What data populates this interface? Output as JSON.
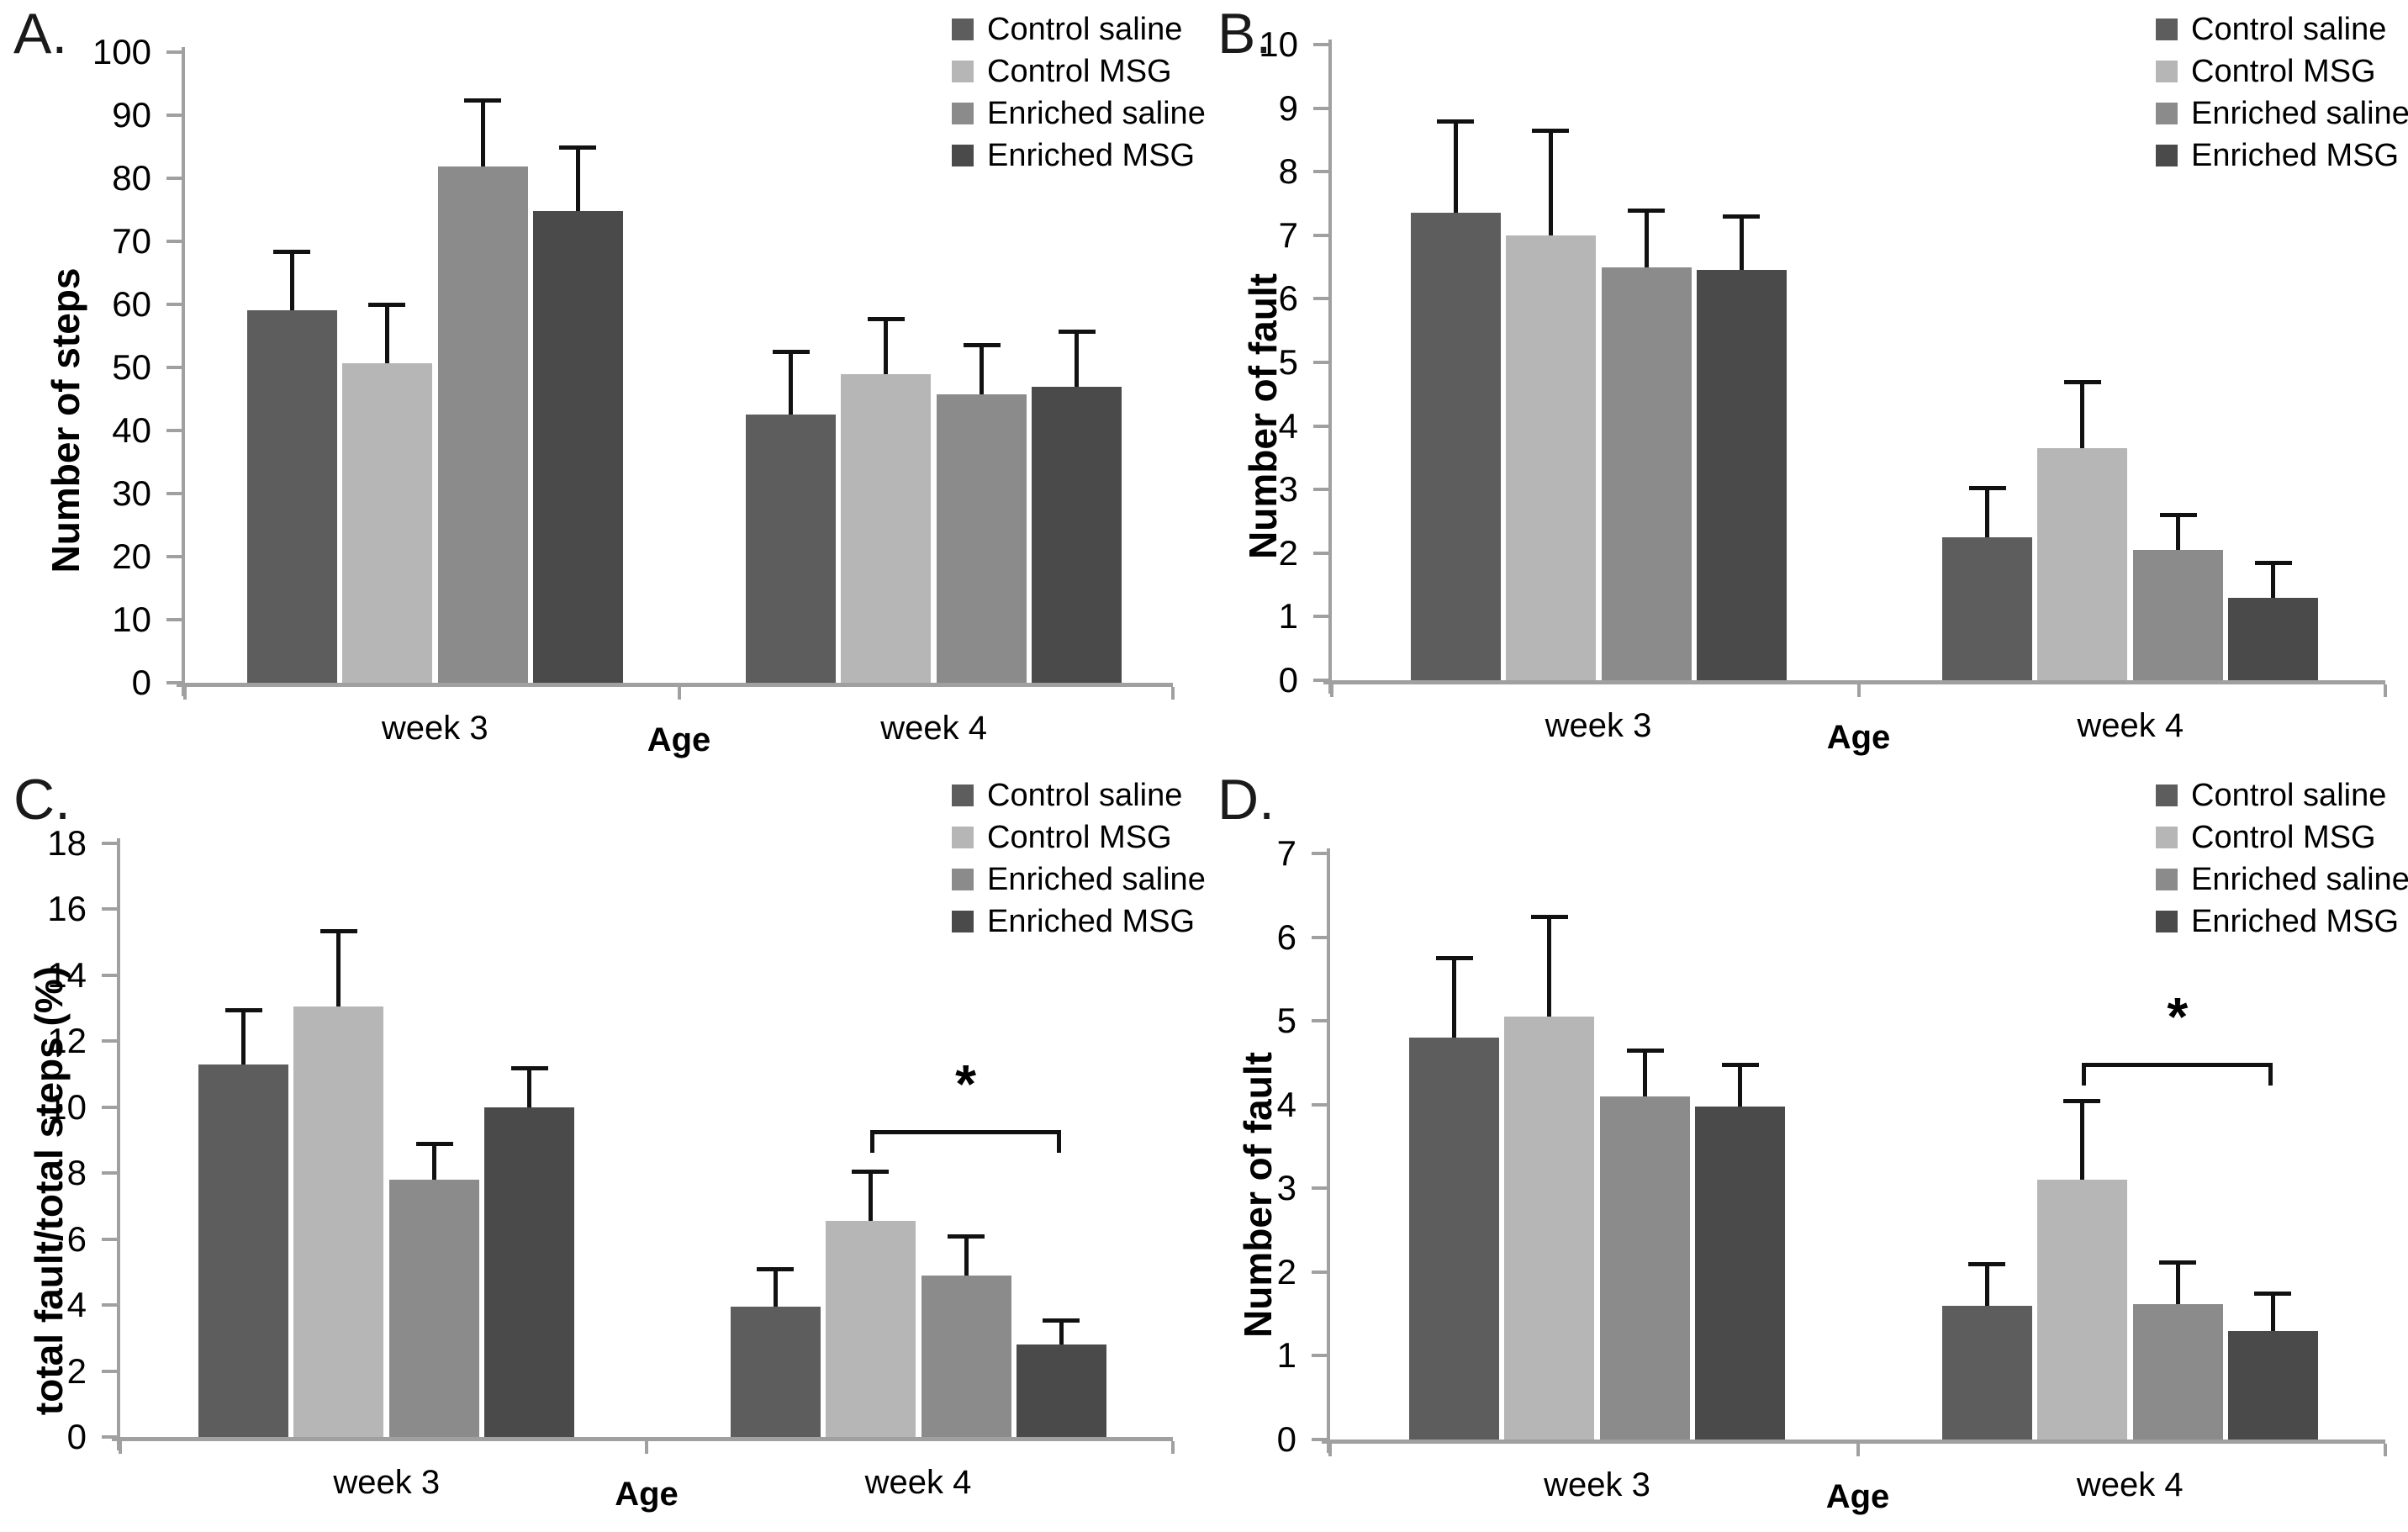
{
  "figure_title": "",
  "legend": {
    "position": "top-right",
    "items": [
      {
        "label": "Control saline",
        "color": "#5d5d5d"
      },
      {
        "label": "Control MSG",
        "color": "#b6b6b6"
      },
      {
        "label": "Enriched saline",
        "color": "#8b8b8b"
      },
      {
        "label": "Enriched MSG",
        "color": "#4a4a4a"
      }
    ]
  },
  "chart_data": [
    {
      "id": "A",
      "panel_label": "A.",
      "type": "bar",
      "title": "",
      "ylabel": "Number of steps",
      "xlabel": "Age",
      "categories": [
        "week 3",
        "week 4"
      ],
      "ylim": [
        0,
        100
      ],
      "ytick_step": 10,
      "grid": false,
      "legend_position": "top-right",
      "error_bars": "upper",
      "series": [
        {
          "name": "Control saline",
          "color": "#5d5d5d",
          "values": [
            59.1,
            42.5
          ],
          "errors_plus": [
            9.3,
            10.0
          ]
        },
        {
          "name": "Control MSG",
          "color": "#b6b6b6",
          "values": [
            50.7,
            48.9
          ],
          "errors_plus": [
            9.3,
            8.8
          ]
        },
        {
          "name": "Enriched saline",
          "color": "#8b8b8b",
          "values": [
            81.9,
            45.8
          ],
          "errors_plus": [
            10.5,
            7.8
          ]
        },
        {
          "name": "Enriched MSG",
          "color": "#4a4a4a",
          "values": [
            74.8,
            47.0
          ],
          "errors_plus": [
            10.2,
            8.7
          ]
        }
      ],
      "significance": null
    },
    {
      "id": "B",
      "panel_label": "B.",
      "type": "bar",
      "title": "",
      "ylabel": "Number of fault",
      "xlabel": "Age",
      "categories": [
        "week 3",
        "week 4"
      ],
      "ylim": [
        0,
        10
      ],
      "ytick_step": 1,
      "grid": false,
      "legend_position": "top-right",
      "error_bars": "upper",
      "series": [
        {
          "name": "Control saline",
          "color": "#5d5d5d",
          "values": [
            7.35,
            2.25
          ],
          "errors_plus": [
            1.45,
            0.78
          ]
        },
        {
          "name": "Control MSG",
          "color": "#b6b6b6",
          "values": [
            7.0,
            3.65
          ],
          "errors_plus": [
            1.65,
            1.05
          ]
        },
        {
          "name": "Enriched saline",
          "color": "#8b8b8b",
          "values": [
            6.5,
            2.05
          ],
          "errors_plus": [
            0.9,
            0.55
          ]
        },
        {
          "name": "Enriched MSG",
          "color": "#4a4a4a",
          "values": [
            6.45,
            1.3
          ],
          "errors_plus": [
            0.85,
            0.55
          ]
        }
      ],
      "significance": null
    },
    {
      "id": "C",
      "panel_label": "C.",
      "type": "bar",
      "title": "",
      "ylabel": "total fault/total steps (%)",
      "xlabel": "Age",
      "categories": [
        "week 3",
        "week 4"
      ],
      "ylim": [
        0,
        18
      ],
      "ytick_step": 2,
      "grid": false,
      "legend_position": "top-right",
      "error_bars": "upper",
      "series": [
        {
          "name": "Control saline",
          "color": "#5d5d5d",
          "values": [
            11.3,
            3.95
          ],
          "errors_plus": [
            1.65,
            1.15
          ]
        },
        {
          "name": "Control MSG",
          "color": "#b6b6b6",
          "values": [
            13.05,
            6.55
          ],
          "errors_plus": [
            2.3,
            1.5
          ]
        },
        {
          "name": "Enriched saline",
          "color": "#8b8b8b",
          "values": [
            7.8,
            4.9
          ],
          "errors_plus": [
            1.1,
            1.2
          ]
        },
        {
          "name": "Enriched MSG",
          "color": "#4a4a4a",
          "values": [
            10.0,
            2.8
          ],
          "errors_plus": [
            1.2,
            0.75
          ]
        }
      ],
      "significance": {
        "category": "week 4",
        "from_series": "Control MSG",
        "to_series": "Enriched MSG",
        "bracket_y": 9.3,
        "label": "*"
      }
    },
    {
      "id": "D",
      "panel_label": "D.",
      "type": "bar",
      "title": "",
      "ylabel": "Number of fault",
      "xlabel": "Age",
      "categories": [
        "week 3",
        "week 4"
      ],
      "ylim": [
        0,
        7
      ],
      "ytick_step": 1,
      "grid": false,
      "legend_position": "top-right",
      "error_bars": "upper",
      "series": [
        {
          "name": "Control saline",
          "color": "#5d5d5d",
          "values": [
            4.8,
            1.6
          ],
          "errors_plus": [
            0.95,
            0.5
          ]
        },
        {
          "name": "Control MSG",
          "color": "#b6b6b6",
          "values": [
            5.05,
            3.1
          ],
          "errors_plus": [
            1.2,
            0.95
          ]
        },
        {
          "name": "Enriched saline",
          "color": "#8b8b8b",
          "values": [
            4.1,
            1.62
          ],
          "errors_plus": [
            0.55,
            0.5
          ]
        },
        {
          "name": "Enriched MSG",
          "color": "#4a4a4a",
          "values": [
            3.98,
            1.3
          ],
          "errors_plus": [
            0.5,
            0.45
          ]
        }
      ],
      "significance": {
        "category": "week 4",
        "from_series": "Control MSG",
        "to_series": "Enriched MSG",
        "bracket_y": 4.5,
        "label": "*"
      }
    }
  ]
}
